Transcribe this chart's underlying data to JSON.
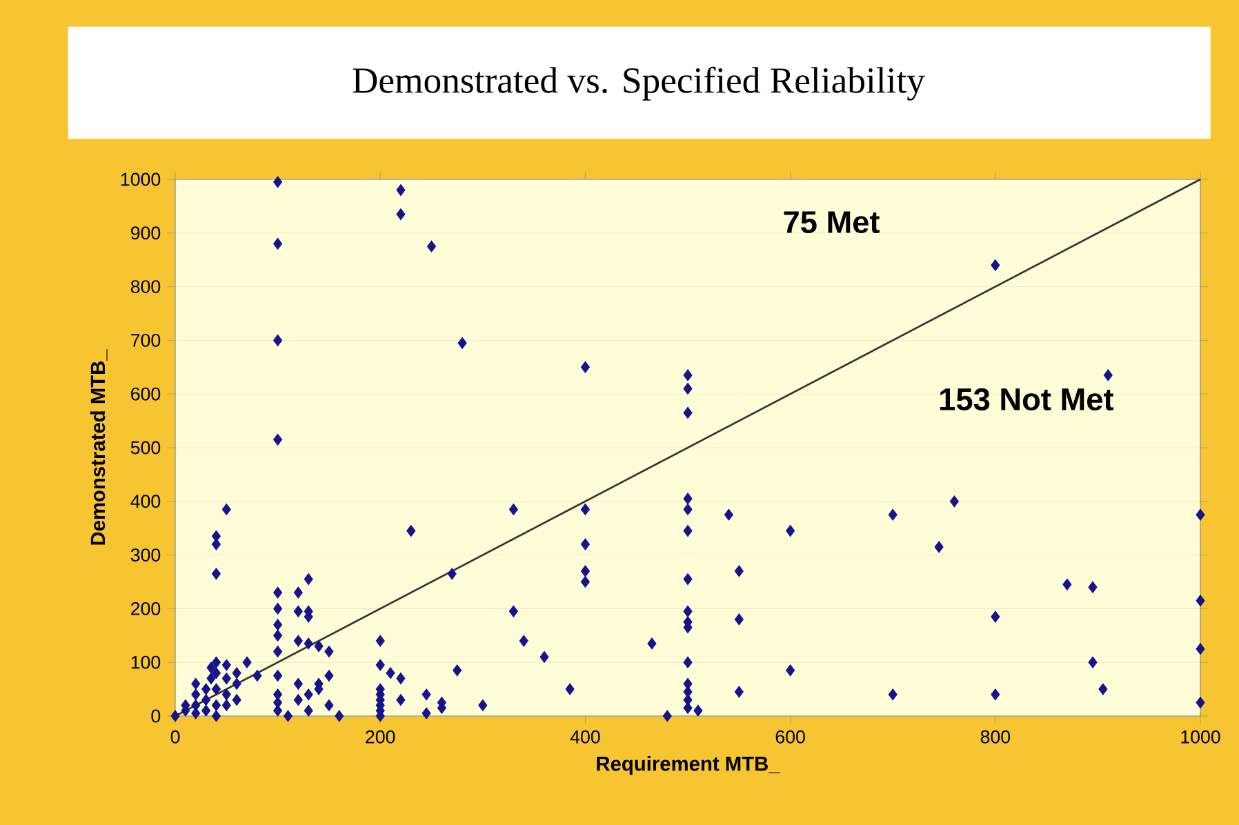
{
  "chart_data": {
    "type": "scatter",
    "title": "Demonstrated vs. Specified Reliability",
    "xlabel": "Requirement MTB_",
    "ylabel": "Demonstrated MTB_",
    "xlim": [
      0,
      1000
    ],
    "ylim": [
      0,
      1000
    ],
    "xticks": [
      0,
      200,
      400,
      600,
      800,
      1000
    ],
    "yticks": [
      0,
      100,
      200,
      300,
      400,
      500,
      600,
      700,
      800,
      900,
      1000
    ],
    "grid": "y",
    "annotations": [
      "75 Met",
      "153 Not Met"
    ],
    "series": [
      {
        "marker": "diamond",
        "color": "#14148c",
        "x": [
          100,
          100,
          100,
          100,
          100,
          100,
          100,
          100,
          100,
          100,
          100,
          100,
          100,
          220,
          220,
          250,
          230,
          280,
          270,
          275,
          400,
          400,
          400,
          400,
          400,
          500,
          500,
          500,
          500,
          500,
          500,
          500,
          500,
          500,
          500,
          500,
          500,
          500,
          500,
          500,
          330,
          330,
          340,
          360,
          385,
          300,
          465,
          480,
          510,
          540,
          550,
          550,
          550,
          600,
          600,
          700,
          700,
          745,
          760,
          800,
          800,
          800,
          870,
          895,
          895,
          905,
          910,
          1000,
          1000,
          1000,
          1000,
          40,
          40,
          40,
          50,
          0,
          10,
          10,
          20,
          20,
          20,
          20,
          30,
          30,
          30,
          35,
          35,
          40,
          40,
          40,
          40,
          40,
          50,
          50,
          50,
          50,
          60,
          60,
          60,
          70,
          80,
          120,
          120,
          120,
          120,
          120,
          130,
          130,
          130,
          130,
          130,
          130,
          140,
          140,
          140,
          150,
          150,
          150,
          200,
          200,
          200,
          200,
          200,
          200,
          200,
          200,
          210,
          220,
          220,
          245,
          245,
          260,
          260,
          160,
          110
        ],
        "values": [
          995,
          880,
          700,
          515,
          230,
          200,
          170,
          150,
          120,
          75,
          40,
          25,
          10,
          980,
          935,
          875,
          345,
          695,
          265,
          85,
          650,
          385,
          320,
          270,
          250,
          635,
          610,
          565,
          405,
          385,
          345,
          255,
          195,
          175,
          165,
          100,
          60,
          45,
          30,
          15,
          385,
          195,
          140,
          110,
          50,
          20,
          135,
          0,
          10,
          375,
          270,
          180,
          45,
          345,
          85,
          375,
          40,
          315,
          400,
          840,
          185,
          40,
          245,
          240,
          100,
          50,
          635,
          375,
          215,
          125,
          25,
          335,
          320,
          265,
          385,
          0,
          10,
          20,
          60,
          40,
          20,
          5,
          30,
          10,
          50,
          90,
          70,
          100,
          80,
          50,
          20,
          0,
          95,
          70,
          40,
          20,
          80,
          60,
          30,
          100,
          75,
          230,
          195,
          140,
          60,
          30,
          255,
          195,
          185,
          135,
          10,
          40,
          130,
          60,
          50,
          120,
          75,
          20,
          140,
          95,
          50,
          40,
          30,
          20,
          10,
          0,
          80,
          30,
          70,
          40,
          5,
          15,
          25,
          0,
          0
        ]
      },
      {
        "type": "line",
        "marker": "none",
        "color": "#333333",
        "x": [
          0,
          1000
        ],
        "values": [
          0,
          1000
        ]
      }
    ]
  }
}
